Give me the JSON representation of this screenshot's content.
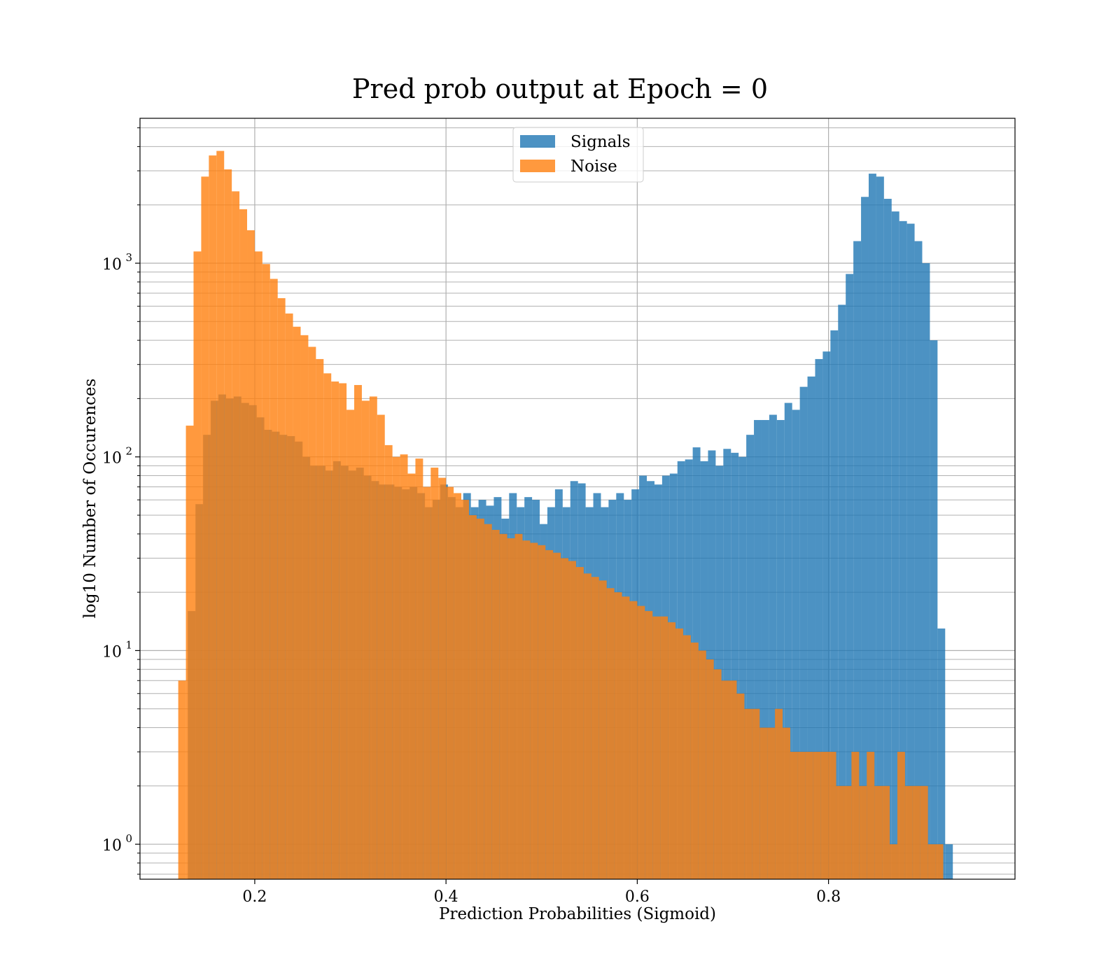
{
  "chart_data": {
    "type": "bar",
    "title": "Pred prob output at Epoch = 0",
    "xlabel": "Prediction Probabilities (Sigmoid)",
    "ylabel": "log10 Number of Occurences",
    "xlim": [
      0.08,
      0.995
    ],
    "ylim": [
      0.66,
      5600
    ],
    "y_scale": "log",
    "grid": true,
    "grid_minor": true,
    "legend_position": "upper-center",
    "x_ticks": [
      {
        "value": 0.2,
        "label": "0.2"
      },
      {
        "value": 0.4,
        "label": "0.4"
      },
      {
        "value": 0.6,
        "label": "0.6"
      },
      {
        "value": 0.8,
        "label": "0.8"
      }
    ],
    "y_ticks": [
      {
        "value": 1,
        "base": "10",
        "exp": "0"
      },
      {
        "value": 10,
        "base": "10",
        "exp": "1"
      },
      {
        "value": 100,
        "base": "10",
        "exp": "2"
      },
      {
        "value": 1000,
        "base": "10",
        "exp": "3"
      }
    ],
    "series": [
      {
        "name": "Signals",
        "color": "#1f77b4",
        "opacity": 0.8,
        "x_start": 0.13,
        "bin_width": 0.008,
        "values": [
          16,
          57,
          130,
          195,
          210,
          200,
          205,
          190,
          185,
          160,
          138,
          135,
          130,
          128,
          120,
          100,
          90,
          90,
          85,
          95,
          90,
          85,
          88,
          80,
          75,
          72,
          72,
          70,
          68,
          70,
          65,
          55,
          60,
          72,
          62,
          55,
          65,
          55,
          60,
          56,
          62,
          48,
          65,
          55,
          62,
          60,
          45,
          55,
          68,
          55,
          75,
          73,
          55,
          65,
          55,
          60,
          65,
          60,
          68,
          80,
          75,
          72,
          80,
          82,
          95,
          97,
          112,
          95,
          108,
          90,
          110,
          105,
          100,
          130,
          155,
          155,
          165,
          155,
          190,
          175,
          230,
          260,
          320,
          350,
          450,
          610,
          880,
          1300,
          2200,
          2900,
          2800,
          2150,
          1850,
          1650,
          1600,
          1300,
          1000,
          400,
          13,
          1
        ]
      },
      {
        "name": "Noise",
        "color": "#ff7f0e",
        "opacity": 0.8,
        "x_start": 0.12,
        "bin_width": 0.008,
        "values": [
          7,
          145,
          1150,
          2800,
          3600,
          3800,
          3050,
          2350,
          1900,
          1480,
          1150,
          990,
          830,
          660,
          550,
          470,
          425,
          370,
          320,
          270,
          245,
          240,
          175,
          235,
          195,
          205,
          165,
          115,
          100,
          103,
          82,
          98,
          70,
          88,
          78,
          70,
          65,
          60,
          50,
          48,
          45,
          42,
          40,
          38,
          40,
          37,
          36,
          35,
          33,
          32,
          30,
          29,
          27,
          25,
          24,
          23,
          21,
          20,
          19,
          18,
          17,
          16,
          15,
          15,
          14,
          13,
          12,
          11,
          10,
          9,
          8,
          7,
          7,
          6,
          5,
          5,
          4,
          4,
          5,
          4,
          3,
          3,
          3,
          3,
          3,
          3,
          2,
          2,
          3,
          2,
          3,
          2,
          2,
          1,
          3,
          2,
          2,
          2,
          1,
          1
        ]
      }
    ]
  }
}
